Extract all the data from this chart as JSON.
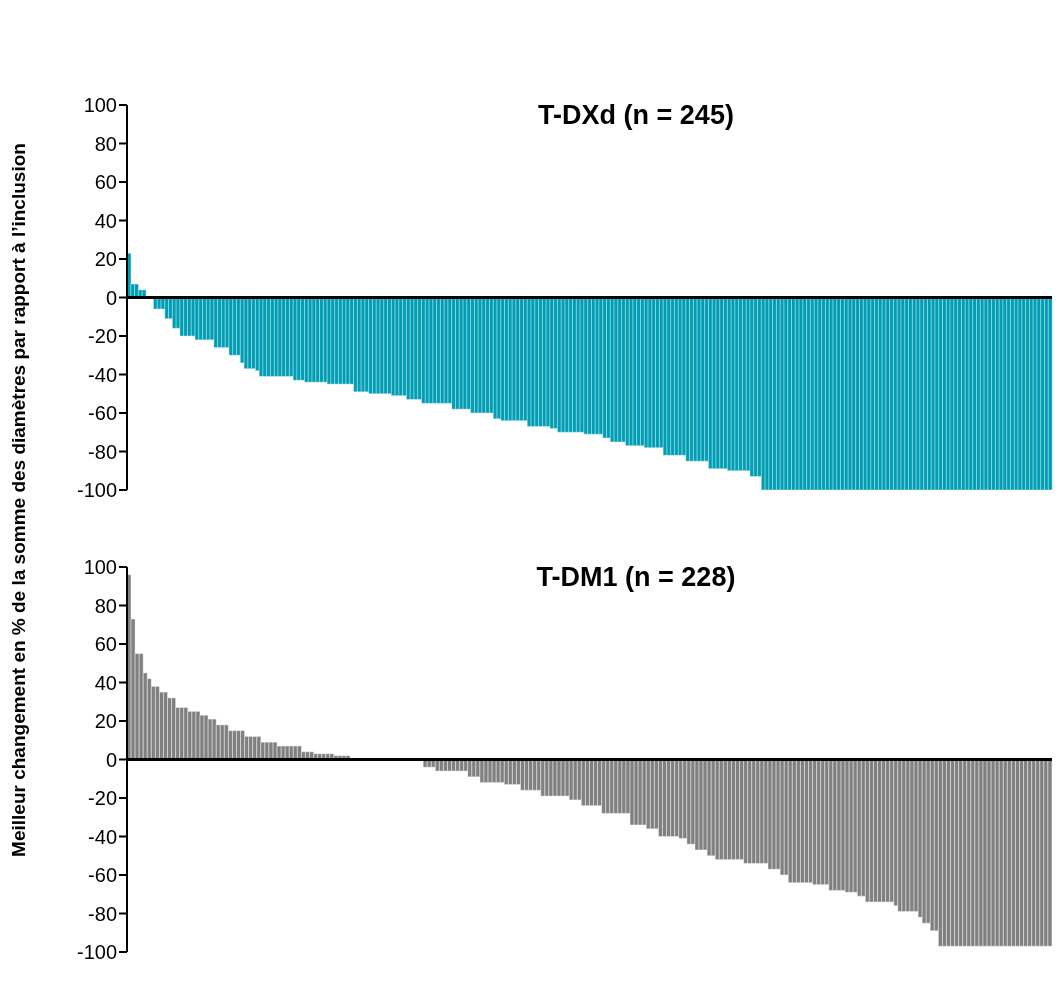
{
  "chart_data": [
    {
      "type": "bar",
      "title": "T-DXd (n = 245)",
      "ylabel": "Meilleur changement en % de la somme des diamètres par rapport à l’inclusion",
      "color": "#009eb4",
      "ylim": [
        -100,
        100
      ],
      "yticks": [
        -100,
        -80,
        -60,
        -40,
        -20,
        0,
        20,
        40,
        60,
        80,
        100
      ],
      "grid": false,
      "ref_lines": [
        {
          "axis": "y",
          "value": 0,
          "color": "#000000"
        }
      ],
      "categories": [
        null,
        null,
        null,
        null,
        null,
        null,
        null,
        null,
        null,
        null,
        null,
        null,
        null,
        null,
        null,
        null,
        null,
        null,
        null,
        null,
        null,
        null,
        null,
        null,
        null,
        null,
        null,
        null,
        null,
        null,
        null,
        null,
        null,
        null,
        null,
        null,
        null,
        null,
        null,
        null,
        null,
        null,
        null,
        null,
        null,
        null,
        null,
        null,
        null,
        null,
        null,
        null,
        null,
        null,
        null,
        null,
        null,
        null,
        null,
        null,
        null,
        null,
        null,
        null,
        null,
        null,
        null,
        null,
        null,
        null,
        null,
        null,
        null,
        null,
        null,
        null,
        null,
        null,
        null,
        null,
        null,
        null,
        null,
        null,
        null,
        null,
        null,
        null,
        null,
        null,
        null,
        null,
        null,
        null,
        null,
        null,
        null,
        null,
        null,
        null,
        null,
        null,
        null,
        null,
        null,
        null,
        null,
        null,
        null,
        null,
        null,
        null,
        null,
        null,
        null,
        null,
        null,
        null,
        null,
        null,
        null,
        null,
        null,
        null,
        null,
        null,
        null,
        null,
        null,
        null,
        null,
        null,
        null,
        null,
        null,
        null,
        null,
        null,
        null,
        null,
        null,
        null,
        null,
        null,
        null,
        null,
        null,
        null,
        null,
        null,
        null,
        null,
        null,
        null,
        null,
        null,
        null,
        null,
        null,
        null,
        null,
        null,
        null,
        null,
        null,
        null,
        null,
        null,
        null,
        null,
        null,
        null,
        null,
        null,
        null,
        null,
        null,
        null,
        null,
        null,
        null,
        null,
        null,
        null,
        null,
        null,
        null,
        null,
        null,
        null,
        null,
        null,
        null,
        null,
        null,
        null,
        null,
        null,
        null,
        null,
        null,
        null,
        null,
        null,
        null,
        null,
        null,
        null,
        null,
        null,
        null,
        null,
        null,
        null,
        null,
        null,
        null,
        null,
        null,
        null,
        null,
        null,
        null,
        null,
        null,
        null,
        null,
        null,
        null,
        null,
        null,
        null,
        null,
        null,
        null,
        null,
        null,
        null,
        null,
        null,
        null,
        null,
        null,
        null,
        null
      ],
      "values": [
        23,
        7,
        7,
        4,
        4,
        0,
        0,
        -6,
        -6,
        -6,
        -11,
        -11,
        -16,
        -16,
        -20,
        -20,
        -20,
        -20,
        -22,
        -22,
        -22,
        -22,
        -22,
        -26,
        -26,
        -26,
        -26,
        -30,
        -30,
        -30,
        -34,
        -37,
        -37,
        -37,
        -38,
        -41,
        -41,
        -41,
        -41,
        -41,
        -41,
        -41,
        -41,
        -41,
        -43,
        -43,
        -43,
        -44,
        -44,
        -44,
        -44,
        -44,
        -44,
        -45,
        -45,
        -45,
        -45,
        -45,
        -45,
        -45,
        -49,
        -49,
        -49,
        -49,
        -50,
        -50,
        -50,
        -50,
        -50,
        -50,
        -51,
        -51,
        -51,
        -51,
        -53,
        -53,
        -53,
        -53,
        -55,
        -55,
        -55,
        -55,
        -55,
        -55,
        -55,
        -55,
        -58,
        -58,
        -58,
        -58,
        -58,
        -60,
        -60,
        -60,
        -60,
        -60,
        -60,
        -63,
        -63,
        -64,
        -64,
        -64,
        -64,
        -64,
        -64,
        -64,
        -67,
        -67,
        -67,
        -67,
        -67,
        -67,
        -68,
        -68,
        -70,
        -70,
        -70,
        -70,
        -70,
        -70,
        -70,
        -71,
        -71,
        -71,
        -71,
        -71,
        -73,
        -73,
        -75,
        -75,
        -75,
        -75,
        -77,
        -77,
        -77,
        -77,
        -77,
        -78,
        -78,
        -78,
        -78,
        -78,
        -82,
        -82,
        -82,
        -82,
        -82,
        -82,
        -85,
        -85,
        -85,
        -85,
        -85,
        -85,
        -89,
        -89,
        -89,
        -89,
        -89,
        -90,
        -90,
        -90,
        -90,
        -90,
        -90,
        -93,
        -93,
        -93,
        -100,
        -100,
        -100,
        -100,
        -100,
        -100,
        -100,
        -100,
        -100,
        -100,
        -100,
        -100,
        -100,
        -100,
        -100,
        -100,
        -100,
        -100,
        -100,
        -100,
        -100,
        -100,
        -100,
        -100,
        -100,
        -100,
        -100,
        -100,
        -100,
        -100,
        -100,
        -100,
        -100,
        -100,
        -100,
        -100,
        -100,
        -100,
        -100,
        -100,
        -100,
        -100,
        -100,
        -100,
        -100,
        -100,
        -100,
        -100,
        -100,
        -100,
        -100,
        -100,
        -100,
        -100,
        -100,
        -100,
        -100,
        -100,
        -100,
        -100,
        -100,
        -100,
        -100,
        -100,
        -100,
        -100,
        -100,
        -100,
        -100,
        -100,
        -100,
        -100,
        -100,
        -100,
        -100,
        -100,
        -100
      ]
    },
    {
      "type": "bar",
      "title": "T-DM1 (n = 228)",
      "color": "#808080",
      "ylim": [
        -100,
        100
      ],
      "yticks": [
        -100,
        -80,
        -60,
        -40,
        -20,
        0,
        20,
        40,
        60,
        80,
        100
      ],
      "grid": false,
      "ref_lines": [
        {
          "axis": "y",
          "value": 0,
          "color": "#000000"
        }
      ],
      "categories": [
        null,
        null,
        null,
        null,
        null,
        null,
        null,
        null,
        null,
        null,
        null,
        null,
        null,
        null,
        null,
        null,
        null,
        null,
        null,
        null,
        null,
        null,
        null,
        null,
        null,
        null,
        null,
        null,
        null,
        null,
        null,
        null,
        null,
        null,
        null,
        null,
        null,
        null,
        null,
        null,
        null,
        null,
        null,
        null,
        null,
        null,
        null,
        null,
        null,
        null,
        null,
        null,
        null,
        null,
        null,
        null,
        null,
        null,
        null,
        null,
        null,
        null,
        null,
        null,
        null,
        null,
        null,
        null,
        null,
        null,
        null,
        null,
        null,
        null,
        null,
        null,
        null,
        null,
        null,
        null,
        null,
        null,
        null,
        null,
        null,
        null,
        null,
        null,
        null,
        null,
        null,
        null,
        null,
        null,
        null,
        null,
        null,
        null,
        null,
        null,
        null,
        null,
        null,
        null,
        null,
        null,
        null,
        null,
        null,
        null,
        null,
        null,
        null,
        null,
        null,
        null,
        null,
        null,
        null,
        null,
        null,
        null,
        null,
        null,
        null,
        null,
        null,
        null,
        null,
        null,
        null,
        null,
        null,
        null,
        null,
        null,
        null,
        null,
        null,
        null,
        null,
        null,
        null,
        null,
        null,
        null,
        null,
        null,
        null,
        null,
        null,
        null,
        null,
        null,
        null,
        null,
        null,
        null,
        null,
        null,
        null,
        null,
        null,
        null,
        null,
        null,
        null,
        null,
        null,
        null,
        null,
        null,
        null,
        null,
        null,
        null,
        null,
        null,
        null,
        null,
        null,
        null,
        null,
        null,
        null,
        null,
        null,
        null,
        null,
        null,
        null,
        null,
        null,
        null,
        null,
        null,
        null,
        null,
        null,
        null,
        null,
        null,
        null,
        null,
        null,
        null,
        null,
        null,
        null,
        null,
        null,
        null,
        null,
        null,
        null,
        null,
        null,
        null,
        null,
        null,
        null,
        null,
        null,
        null,
        null,
        null,
        null,
        null
      ],
      "values": [
        96,
        73,
        55,
        55,
        45,
        42,
        38,
        38,
        35,
        35,
        32,
        32,
        27,
        27,
        27,
        25,
        25,
        25,
        23,
        23,
        21,
        21,
        18,
        18,
        18,
        15,
        15,
        15,
        15,
        12,
        12,
        12,
        12,
        9,
        9,
        9,
        9,
        7,
        7,
        7,
        7,
        7,
        7,
        4,
        4,
        4,
        3,
        3,
        3,
        3,
        3,
        2,
        2,
        2,
        2,
        0,
        0,
        0,
        0,
        0,
        0,
        0,
        0,
        0,
        0,
        0,
        0,
        0,
        0,
        0,
        0,
        0,
        0,
        -4,
        -4,
        -4,
        -6,
        -6,
        -6,
        -6,
        -6,
        -6,
        -6,
        -6,
        -9,
        -9,
        -9,
        -12,
        -12,
        -12,
        -12,
        -12,
        -12,
        -13,
        -13,
        -13,
        -13,
        -16,
        -16,
        -16,
        -16,
        -16,
        -19,
        -19,
        -19,
        -19,
        -19,
        -19,
        -19,
        -21,
        -21,
        -21,
        -24,
        -24,
        -24,
        -24,
        -24,
        -28,
        -28,
        -28,
        -28,
        -28,
        -28,
        -28,
        -34,
        -34,
        -34,
        -34,
        -36,
        -36,
        -36,
        -40,
        -40,
        -40,
        -40,
        -40,
        -41,
        -41,
        -44,
        -44,
        -47,
        -47,
        -47,
        -50,
        -50,
        -52,
        -52,
        -52,
        -52,
        -52,
        -52,
        -52,
        -54,
        -54,
        -54,
        -54,
        -54,
        -54,
        -57,
        -57,
        -57,
        -60,
        -60,
        -64,
        -64,
        -64,
        -64,
        -64,
        -64,
        -65,
        -65,
        -65,
        -65,
        -68,
        -68,
        -68,
        -68,
        -69,
        -69,
        -69,
        -71,
        -71,
        -74,
        -74,
        -74,
        -74,
        -74,
        -74,
        -74,
        -76,
        -79,
        -79,
        -79,
        -79,
        -79,
        -82,
        -85,
        -85,
        -89,
        -89,
        -97,
        -97,
        -97,
        -97,
        -97,
        -97,
        -97,
        -97,
        -97,
        -97,
        -97,
        -97,
        -97,
        -97,
        -97,
        -97,
        -97,
        -97,
        -97,
        -97,
        -97,
        -97,
        -97,
        -97,
        -97,
        -97,
        -97,
        -97
      ]
    }
  ]
}
